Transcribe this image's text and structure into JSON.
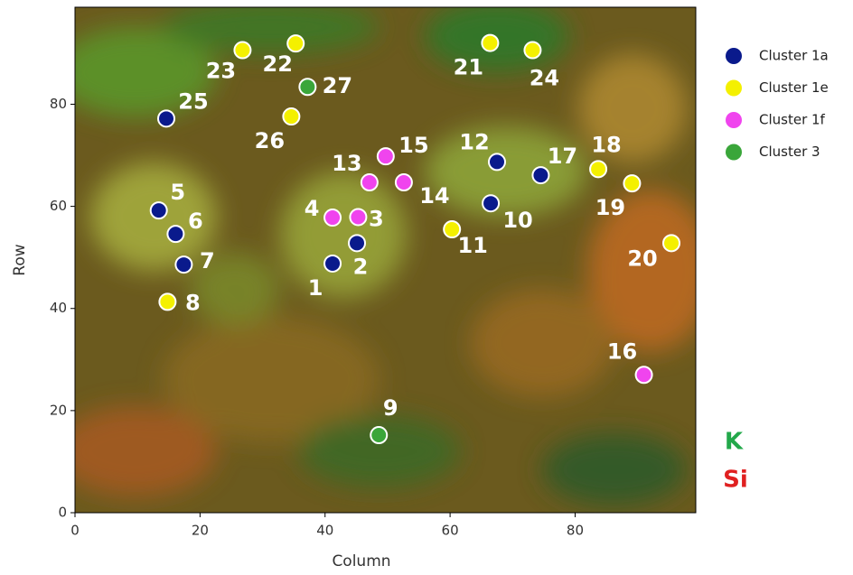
{
  "chart_data": {
    "type": "scatter",
    "x_label": "Column",
    "y_label": "Row",
    "xlim": [
      0,
      99.3
    ],
    "ylim": [
      0,
      99
    ],
    "xticks": [
      0,
      20,
      40,
      60,
      80
    ],
    "yticks": [
      0,
      20,
      40,
      60,
      80
    ],
    "legend_position": "right",
    "series": [
      {
        "name": "Cluster 1a",
        "color": "#0a1a8c",
        "x": [
          41.2,
          45.1,
          13.4,
          16.1,
          17.4,
          66.5,
          67.5,
          74.5,
          14.6
        ],
        "y": [
          48.8,
          52.8,
          59.2,
          54.6,
          48.6,
          60.6,
          68.7,
          66.1,
          77.2
        ],
        "labels": [
          "1",
          "2",
          "5",
          "6",
          "7",
          "10",
          "12",
          "17",
          "25"
        ]
      },
      {
        "name": "Cluster 1e",
        "color": "#f4f000",
        "x": [
          14.8,
          60.3,
          83.7,
          89.1,
          95.4,
          66.4,
          35.3,
          26.8,
          73.2,
          34.6
        ],
        "y": [
          41.3,
          55.5,
          67.3,
          64.5,
          52.8,
          92.0,
          91.9,
          90.6,
          90.6,
          77.6
        ],
        "labels": [
          "8",
          "11",
          "18",
          "19",
          "20",
          "21",
          "22",
          "23",
          "24",
          "26"
        ]
      },
      {
        "name": "Cluster 1f",
        "color": "#f044ee",
        "x": [
          45.3,
          41.2,
          47.1,
          52.6,
          49.7,
          91.0
        ],
        "y": [
          57.9,
          57.8,
          64.7,
          64.7,
          69.8,
          27.0
        ],
        "labels": [
          "3",
          "4",
          "13",
          "14",
          "15",
          "16"
        ]
      },
      {
        "name": "Cluster 3",
        "color": "#3aa63a",
        "x": [
          48.6,
          37.2
        ],
        "y": [
          15.2,
          83.4
        ],
        "labels": [
          "9",
          "27"
        ]
      }
    ],
    "annotations": [
      {
        "text": "K",
        "color": "#22a84a"
      },
      {
        "text": "Si",
        "color": "#e02020"
      }
    ]
  }
}
